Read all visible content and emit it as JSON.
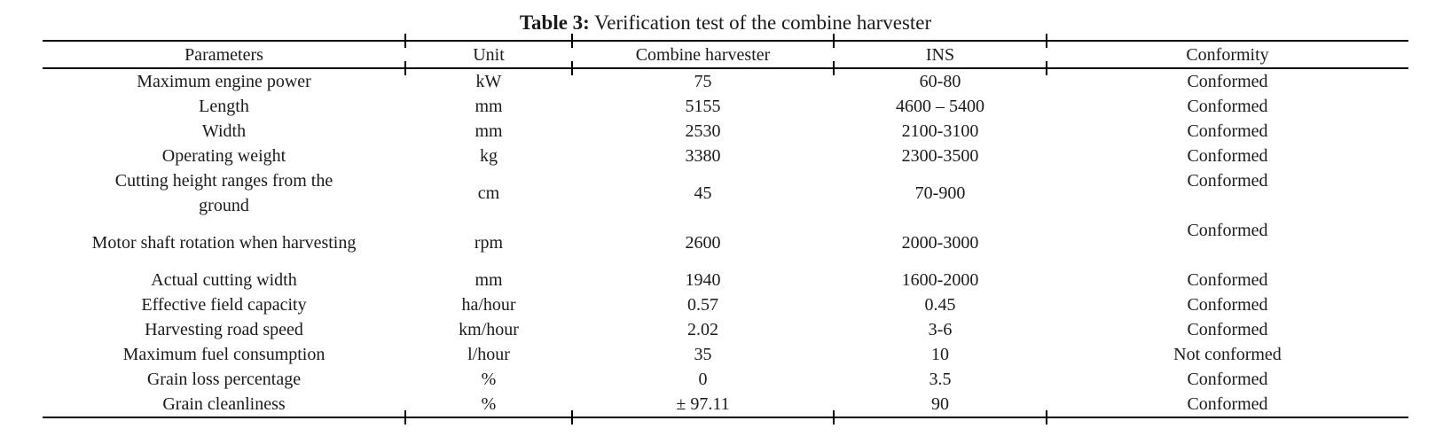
{
  "caption": {
    "label": "Table 3:",
    "text": " Verification test of the combine harvester"
  },
  "colors": {
    "text": "#1a1a1a",
    "rule": "#000000",
    "background": "#ffffff"
  },
  "table": {
    "columns": [
      "Parameters",
      "Unit",
      "Combine harvester",
      "INS",
      "Conformity"
    ],
    "rows": [
      [
        "Maximum engine power",
        "kW",
        "75",
        "60-80",
        "Conformed"
      ],
      [
        "Length",
        "mm",
        "5155",
        "4600 – 5400",
        "Conformed"
      ],
      [
        "Width",
        "mm",
        "2530",
        "2100-3100",
        "Conformed"
      ],
      [
        "Operating weight",
        "kg",
        "3380",
        "2300-3500",
        "Conformed"
      ],
      [
        "Cutting height ranges from the ground",
        "cm",
        "45",
        "70-900",
        "Conformed"
      ],
      [
        "Motor shaft rotation when harvesting",
        "rpm",
        "2600",
        "2000-3000",
        "Conformed"
      ],
      [
        "Actual cutting width",
        "mm",
        "1940",
        "1600-2000",
        "Conformed"
      ],
      [
        "Effective field capacity",
        "ha/hour",
        "0.57",
        "0.45",
        "Conformed"
      ],
      [
        "Harvesting road speed",
        "km/hour",
        "2.02",
        "3-6",
        "Conformed"
      ],
      [
        "Maximum fuel consumption",
        "l/hour",
        "35",
        "10",
        "Not conformed"
      ],
      [
        "Grain loss percentage",
        "%",
        "0",
        "3.5",
        "Conformed"
      ],
      [
        "Grain cleanliness",
        "%",
        "± 97.11",
        "90",
        "Conformed"
      ]
    ]
  }
}
